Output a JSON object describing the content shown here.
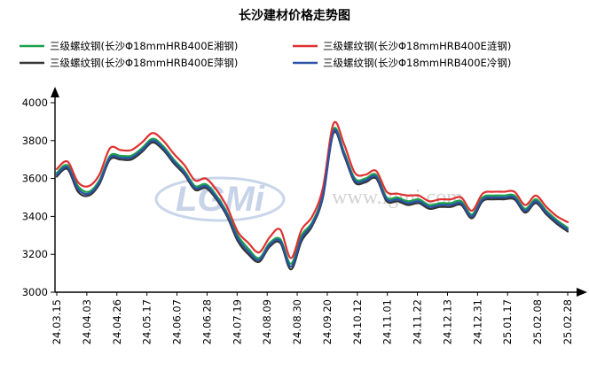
{
  "chart_data": {
    "type": "line",
    "title": "长沙建材价格走势图",
    "watermark": "LGMi  www.lgmi.com",
    "ylim": [
      3000,
      4000
    ],
    "yticks": [
      3000,
      3200,
      3400,
      3600,
      3800,
      4000
    ],
    "x_tick_labels": [
      "24.03.15",
      "24.04.03",
      "24.04.26",
      "24.05.17",
      "24.06.07",
      "24.06.28",
      "24.07.19",
      "24.08.09",
      "24.08.30",
      "24.09.20",
      "24.10.12",
      "24.11.01",
      "24.11.22",
      "24.12.13",
      "24.12.31",
      "25.01.17",
      "25.02.08",
      "25.02.28"
    ],
    "legend_position": "top",
    "grid": false,
    "series": [
      {
        "name": "三级螺纹钢(长沙Φ18mmHRB400E湘钢)",
        "color": "#1aa04a",
        "values": [
          3630,
          3670,
          3560,
          3530,
          3590,
          3720,
          3720,
          3720,
          3760,
          3810,
          3770,
          3700,
          3640,
          3560,
          3570,
          3510,
          3420,
          3300,
          3230,
          3180,
          3260,
          3280,
          3150,
          3300,
          3370,
          3520,
          3860,
          3740,
          3600,
          3600,
          3620,
          3500,
          3500,
          3480,
          3490,
          3460,
          3470,
          3470,
          3480,
          3410,
          3500,
          3510,
          3510,
          3510,
          3440,
          3490,
          3430,
          3380,
          3340
        ]
      },
      {
        "name": "三级螺纹钢(长沙Φ18mmHRB400E涟钢)",
        "color": "#e03030",
        "values": [
          3650,
          3690,
          3580,
          3560,
          3620,
          3760,
          3750,
          3750,
          3790,
          3840,
          3800,
          3730,
          3670,
          3590,
          3600,
          3540,
          3450,
          3320,
          3260,
          3210,
          3290,
          3330,
          3180,
          3330,
          3400,
          3550,
          3890,
          3780,
          3630,
          3620,
          3640,
          3530,
          3520,
          3510,
          3510,
          3480,
          3490,
          3490,
          3500,
          3430,
          3520,
          3530,
          3530,
          3530,
          3460,
          3510,
          3450,
          3400,
          3370
        ]
      },
      {
        "name": "三级螺纹钢(长沙Φ18mmHRB400E萍钢)",
        "color": "#333333",
        "values": [
          3610,
          3650,
          3530,
          3510,
          3570,
          3700,
          3700,
          3700,
          3740,
          3790,
          3750,
          3680,
          3620,
          3540,
          3550,
          3490,
          3400,
          3270,
          3200,
          3160,
          3240,
          3260,
          3120,
          3270,
          3350,
          3500,
          3840,
          3720,
          3580,
          3580,
          3600,
          3480,
          3480,
          3460,
          3470,
          3440,
          3450,
          3450,
          3460,
          3390,
          3480,
          3490,
          3490,
          3490,
          3420,
          3470,
          3410,
          3360,
          3320
        ]
      },
      {
        "name": "三级螺纹钢(长沙Φ18mmHRB400E冷钢)",
        "color": "#2a52a8",
        "values": [
          3620,
          3660,
          3545,
          3520,
          3580,
          3710,
          3710,
          3710,
          3750,
          3800,
          3760,
          3690,
          3630,
          3550,
          3560,
          3500,
          3410,
          3285,
          3215,
          3170,
          3250,
          3270,
          3135,
          3285,
          3360,
          3510,
          3850,
          3730,
          3590,
          3590,
          3610,
          3490,
          3490,
          3470,
          3480,
          3450,
          3460,
          3460,
          3470,
          3400,
          3490,
          3500,
          3500,
          3500,
          3430,
          3480,
          3420,
          3370,
          3330
        ]
      }
    ]
  }
}
